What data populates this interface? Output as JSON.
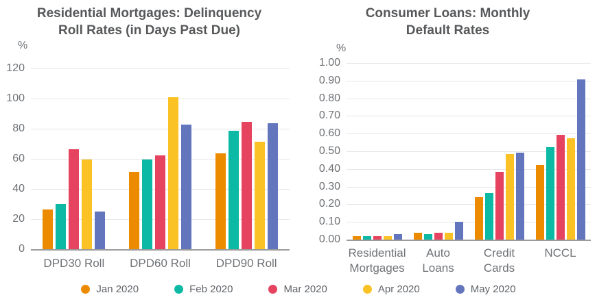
{
  "page": {
    "background": "#FFFFFF"
  },
  "styles": {
    "title_color": "#57585A",
    "axis_text_color": "#6F7276",
    "legend_text_color": "#5F6368",
    "gridline_color": "#E5E5E5",
    "axis_line_color": "#9B9B9B",
    "series_colors": {
      "jan": "#ED8B00",
      "feb": "#0BB9A4",
      "mar": "#E5435F",
      "apr": "#FBC226",
      "may": "#6376BD"
    }
  },
  "legend": {
    "items": [
      {
        "label": "Jan 2020",
        "color": "#ED8B00"
      },
      {
        "label": "Feb 2020",
        "color": "#0BB9A4"
      },
      {
        "label": "Mar 2020",
        "color": "#E5435F"
      },
      {
        "label": "Apr 2020",
        "color": "#FBC226"
      },
      {
        "label": "May 2020",
        "color": "#6376BD"
      }
    ]
  },
  "chart_data": [
    {
      "type": "bar",
      "title": "Residential Mortgages: Delinquency Roll Rates (in Days Past Due)",
      "title_lines": [
        "Residential Mortgages: Delinquency",
        "Roll Rates (in Days Past Due)"
      ],
      "ylabel": "%",
      "xlabel": "",
      "ylim": [
        0,
        120
      ],
      "grid": true,
      "legend_position": "bottom-shared",
      "yticks": [
        0,
        20,
        40,
        60,
        80,
        100,
        120
      ],
      "ytick_labels": [
        "0",
        "20",
        "40",
        "60",
        "80",
        "100",
        "120"
      ],
      "categories": [
        "DPD30 Roll",
        "DPD60 Roll",
        "DPD90 Roll"
      ],
      "categories_lines": [
        [
          "DPD30 Roll"
        ],
        [
          "DPD60 Roll"
        ],
        [
          "DPD90 Roll"
        ]
      ],
      "series": [
        {
          "name": "Jan 2020",
          "color": "#ED8B00",
          "values": [
            26,
            51,
            63
          ]
        },
        {
          "name": "Feb 2020",
          "color": "#0BB9A4",
          "values": [
            30,
            59,
            78
          ]
        },
        {
          "name": "Mar 2020",
          "color": "#E5435F",
          "values": [
            66,
            62,
            84
          ]
        },
        {
          "name": "Apr 2020",
          "color": "#FBC226",
          "values": [
            59,
            100,
            71
          ]
        },
        {
          "name": "May 2020",
          "color": "#6376BD",
          "values": [
            25,
            82,
            83
          ]
        }
      ]
    },
    {
      "type": "bar",
      "title": "Consumer Loans: Monthly Default Rates",
      "title_lines": [
        "Consumer Loans: Monthly",
        "Default Rates"
      ],
      "ylabel": "%",
      "xlabel": "",
      "ylim": [
        0,
        1.0
      ],
      "grid": true,
      "legend_position": "bottom-shared",
      "yticks": [
        0,
        0.1,
        0.2,
        0.3,
        0.4,
        0.5,
        0.6,
        0.7,
        0.8,
        0.9,
        1.0
      ],
      "ytick_labels": [
        "0.00",
        "0.10",
        "0.20",
        "0.30",
        "0.40",
        "0.50",
        "0.60",
        "0.70",
        "0.80",
        "0.90",
        "1.00"
      ],
      "categories": [
        "Residential Mortgages",
        "Auto Loans",
        "Credit Cards",
        "NCCL"
      ],
      "categories_lines": [
        [
          "Residential",
          "Mortgages"
        ],
        [
          "Auto",
          "Loans"
        ],
        [
          "Credit",
          "Cards"
        ],
        [
          "NCCL"
        ]
      ],
      "series": [
        {
          "name": "Jan 2020",
          "color": "#ED8B00",
          "values": [
            0.02,
            0.04,
            0.24,
            0.42
          ]
        },
        {
          "name": "Feb 2020",
          "color": "#0BB9A4",
          "values": [
            0.02,
            0.03,
            0.26,
            0.52
          ]
        },
        {
          "name": "Mar 2020",
          "color": "#E5435F",
          "values": [
            0.02,
            0.04,
            0.38,
            0.59
          ]
        },
        {
          "name": "Apr 2020",
          "color": "#FBC226",
          "values": [
            0.02,
            0.04,
            0.48,
            0.57
          ]
        },
        {
          "name": "May 2020",
          "color": "#6376BD",
          "values": [
            0.03,
            0.1,
            0.49,
            0.9
          ]
        }
      ]
    }
  ]
}
